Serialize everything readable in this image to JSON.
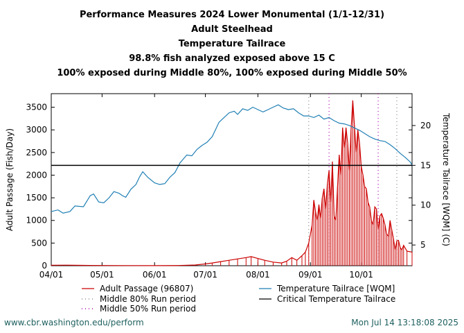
{
  "titles": [
    "Performance Measures 2024 Lower Monumental (1/1-12/31)",
    "Adult Steelhead",
    "Temperature Tailrace",
    "98.8% fish analyzed exposed above 15 C",
    "100% exposed during Middle 80%, 100% exposed during Middle 50%"
  ],
  "footer": {
    "url": "www.cbr.washington.edu/perform",
    "timestamp": "Mon Jul 14 13:18:08 2025"
  },
  "chart_data": {
    "type": "line",
    "ylabel": "Adult Passage (Fish/Day)",
    "y2label": "Temperature Tailrace [WQM] (C)",
    "xlim": [
      "2024-04-01",
      "2024-10-31"
    ],
    "ylim": [
      0,
      3800
    ],
    "y2lim": [
      2.4,
      24.0
    ],
    "x_ticks": [
      {
        "date": "2024-04-01",
        "label": "04/01"
      },
      {
        "date": "2024-05-01",
        "label": "05/01"
      },
      {
        "date": "2024-06-01",
        "label": "06/01"
      },
      {
        "date": "2024-07-01",
        "label": "07/01"
      },
      {
        "date": "2024-08-01",
        "label": "08/01"
      },
      {
        "date": "2024-09-01",
        "label": "09/01"
      },
      {
        "date": "2024-10-01",
        "label": "10/01"
      }
    ],
    "y_ticks": [
      0,
      500,
      1000,
      1500,
      2000,
      2500,
      3000,
      3500
    ],
    "y2_ticks": [
      5,
      10,
      15,
      20
    ],
    "critical_temperature": 15,
    "middle_80_dates": [
      "2024-08-31",
      "2024-10-22"
    ],
    "middle_50_dates": [
      "2024-09-12",
      "2024-10-11"
    ],
    "legend": [
      {
        "label": "Adult Passage (96807)",
        "color": "#cc0000",
        "style": "solid"
      },
      {
        "label": "Temperature Tailrace [WQM]",
        "color": "#1f7fb4",
        "style": "solid"
      },
      {
        "label": "Middle 80% Run period",
        "color": "#888888",
        "style": "dotted"
      },
      {
        "label": "Critical Temperature Tailrace",
        "color": "#000000",
        "style": "solid"
      },
      {
        "label": "Middle 50% Run period",
        "color": "#aa00aa",
        "style": "dotted"
      }
    ],
    "series": [
      {
        "name": "Adult Passage (96807)",
        "axis": "left",
        "color": "#cc0000",
        "points": [
          [
            "2024-04-01",
            10
          ],
          [
            "2024-04-10",
            12
          ],
          [
            "2024-04-20",
            8
          ],
          [
            "2024-05-01",
            5
          ],
          [
            "2024-05-15",
            3
          ],
          [
            "2024-06-01",
            2
          ],
          [
            "2024-06-15",
            5
          ],
          [
            "2024-06-25",
            15
          ],
          [
            "2024-07-01",
            40
          ],
          [
            "2024-07-05",
            60
          ],
          [
            "2024-07-10",
            90
          ],
          [
            "2024-07-15",
            120
          ],
          [
            "2024-07-20",
            150
          ],
          [
            "2024-07-25",
            180
          ],
          [
            "2024-07-28",
            200
          ],
          [
            "2024-08-01",
            160
          ],
          [
            "2024-08-05",
            120
          ],
          [
            "2024-08-10",
            80
          ],
          [
            "2024-08-15",
            60
          ],
          [
            "2024-08-18",
            100
          ],
          [
            "2024-08-21",
            180
          ],
          [
            "2024-08-24",
            120
          ],
          [
            "2024-08-27",
            220
          ],
          [
            "2024-08-29",
            300
          ],
          [
            "2024-08-31",
            500
          ],
          [
            "2024-09-02",
            900
          ],
          [
            "2024-09-03",
            1450
          ],
          [
            "2024-09-04",
            1200
          ],
          [
            "2024-09-05",
            1000
          ],
          [
            "2024-09-06",
            1350
          ],
          [
            "2024-09-07",
            1050
          ],
          [
            "2024-09-08",
            1500
          ],
          [
            "2024-09-09",
            1700
          ],
          [
            "2024-09-10",
            1250
          ],
          [
            "2024-09-11",
            1800
          ],
          [
            "2024-09-12",
            2100
          ],
          [
            "2024-09-13",
            1400
          ],
          [
            "2024-09-14",
            2300
          ],
          [
            "2024-09-15",
            1100
          ],
          [
            "2024-09-16",
            1000
          ],
          [
            "2024-09-17",
            1750
          ],
          [
            "2024-09-18",
            2450
          ],
          [
            "2024-09-19",
            2000
          ],
          [
            "2024-09-20",
            3050
          ],
          [
            "2024-09-21",
            2600
          ],
          [
            "2024-09-22",
            3050
          ],
          [
            "2024-09-23",
            2700
          ],
          [
            "2024-09-24",
            2100
          ],
          [
            "2024-09-25",
            3000
          ],
          [
            "2024-09-26",
            3650
          ],
          [
            "2024-09-27",
            3100
          ],
          [
            "2024-09-28",
            2500
          ],
          [
            "2024-09-29",
            3000
          ],
          [
            "2024-09-30",
            2700
          ],
          [
            "2024-10-01",
            2200
          ],
          [
            "2024-10-02",
            2000
          ],
          [
            "2024-10-03",
            1750
          ],
          [
            "2024-10-04",
            1700
          ],
          [
            "2024-10-05",
            1400
          ],
          [
            "2024-10-06",
            1300
          ],
          [
            "2024-10-07",
            1000
          ],
          [
            "2024-10-08",
            900
          ],
          [
            "2024-10-09",
            1300
          ],
          [
            "2024-10-10",
            1250
          ],
          [
            "2024-10-11",
            800
          ],
          [
            "2024-10-12",
            1100
          ],
          [
            "2024-10-13",
            1150
          ],
          [
            "2024-10-14",
            1050
          ],
          [
            "2024-10-15",
            900
          ],
          [
            "2024-10-16",
            700
          ],
          [
            "2024-10-17",
            650
          ],
          [
            "2024-10-18",
            1000
          ],
          [
            "2024-10-19",
            800
          ],
          [
            "2024-10-20",
            600
          ],
          [
            "2024-10-21",
            350
          ],
          [
            "2024-10-22",
            550
          ],
          [
            "2024-10-23",
            560
          ],
          [
            "2024-10-24",
            400
          ],
          [
            "2024-10-25",
            350
          ],
          [
            "2024-10-26",
            450
          ],
          [
            "2024-10-28",
            320
          ],
          [
            "2024-10-31",
            300
          ]
        ]
      },
      {
        "name": "Temperature Tailrace [WQM]",
        "axis": "right",
        "color": "#1f7fb4",
        "points": [
          [
            "2024-04-01",
            9.2
          ],
          [
            "2024-04-05",
            9.4
          ],
          [
            "2024-04-08",
            9.0
          ],
          [
            "2024-04-12",
            9.2
          ],
          [
            "2024-04-15",
            9.9
          ],
          [
            "2024-04-20",
            9.8
          ],
          [
            "2024-04-24",
            11.2
          ],
          [
            "2024-04-26",
            11.4
          ],
          [
            "2024-04-29",
            10.4
          ],
          [
            "2024-05-02",
            10.3
          ],
          [
            "2024-05-05",
            10.9
          ],
          [
            "2024-05-08",
            11.7
          ],
          [
            "2024-05-11",
            11.5
          ],
          [
            "2024-05-13",
            11.2
          ],
          [
            "2024-05-15",
            11.0
          ],
          [
            "2024-05-18",
            12.0
          ],
          [
            "2024-05-21",
            12.6
          ],
          [
            "2024-05-23",
            13.5
          ],
          [
            "2024-05-25",
            14.2
          ],
          [
            "2024-05-28",
            13.5
          ],
          [
            "2024-06-01",
            12.8
          ],
          [
            "2024-06-04",
            12.6
          ],
          [
            "2024-06-07",
            12.7
          ],
          [
            "2024-06-10",
            13.5
          ],
          [
            "2024-06-13",
            14.1
          ],
          [
            "2024-06-16",
            15.3
          ],
          [
            "2024-06-18",
            15.8
          ],
          [
            "2024-06-20",
            16.3
          ],
          [
            "2024-06-23",
            16.2
          ],
          [
            "2024-06-26",
            17.0
          ],
          [
            "2024-06-29",
            17.5
          ],
          [
            "2024-07-02",
            17.9
          ],
          [
            "2024-07-05",
            18.6
          ],
          [
            "2024-07-07",
            19.5
          ],
          [
            "2024-07-09",
            20.4
          ],
          [
            "2024-07-12",
            21.0
          ],
          [
            "2024-07-15",
            21.6
          ],
          [
            "2024-07-18",
            21.8
          ],
          [
            "2024-07-20",
            21.4
          ],
          [
            "2024-07-23",
            22.1
          ],
          [
            "2024-07-26",
            21.9
          ],
          [
            "2024-07-29",
            22.3
          ],
          [
            "2024-08-01",
            22.0
          ],
          [
            "2024-08-04",
            21.7
          ],
          [
            "2024-08-07",
            22.0
          ],
          [
            "2024-08-10",
            22.3
          ],
          [
            "2024-08-13",
            22.6
          ],
          [
            "2024-08-16",
            22.2
          ],
          [
            "2024-08-19",
            22.0
          ],
          [
            "2024-08-22",
            22.1
          ],
          [
            "2024-08-25",
            21.6
          ],
          [
            "2024-08-28",
            21.2
          ],
          [
            "2024-08-31",
            21.2
          ],
          [
            "2024-09-03",
            21.0
          ],
          [
            "2024-09-06",
            21.3
          ],
          [
            "2024-09-09",
            20.8
          ],
          [
            "2024-09-12",
            21.0
          ],
          [
            "2024-09-15",
            20.6
          ],
          [
            "2024-09-18",
            20.3
          ],
          [
            "2024-09-21",
            20.2
          ],
          [
            "2024-09-24",
            20.0
          ],
          [
            "2024-09-27",
            19.7
          ],
          [
            "2024-09-30",
            19.4
          ],
          [
            "2024-10-03",
            19.0
          ],
          [
            "2024-10-06",
            18.6
          ],
          [
            "2024-10-09",
            18.3
          ],
          [
            "2024-10-12",
            18.1
          ],
          [
            "2024-10-15",
            18.0
          ],
          [
            "2024-10-18",
            17.6
          ],
          [
            "2024-10-21",
            17.1
          ],
          [
            "2024-10-24",
            16.5
          ],
          [
            "2024-10-27",
            16.0
          ],
          [
            "2024-10-30",
            15.4
          ],
          [
            "2024-10-31",
            15.0
          ]
        ]
      }
    ]
  }
}
